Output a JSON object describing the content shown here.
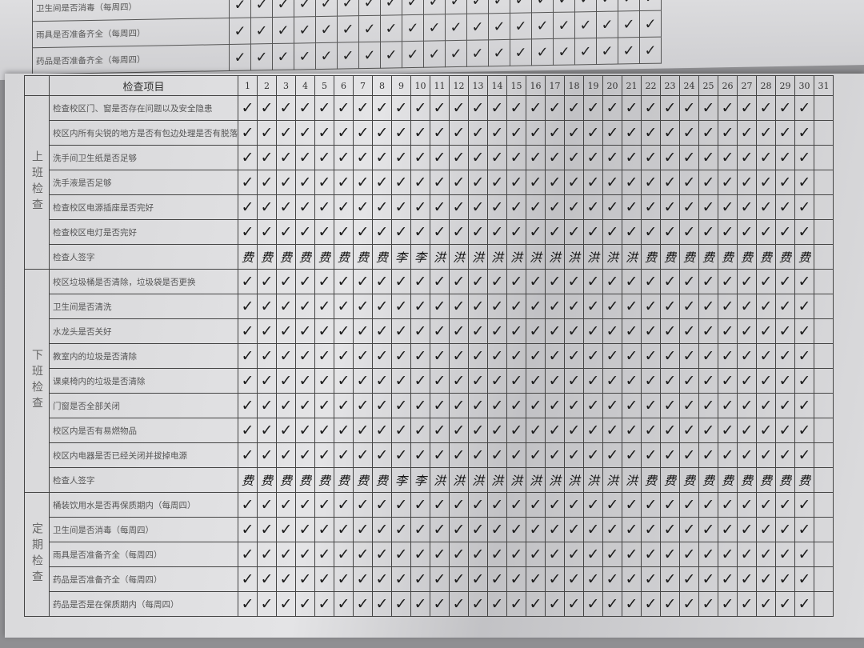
{
  "under_page": {
    "section": "定期检查",
    "rows": [
      {
        "label": "卫生间是否消毒（每周四）",
        "marks": [
          "✓",
          "✓",
          "✓",
          "✓",
          "✓",
          "✓",
          "✓",
          "✓",
          "✓",
          "✓",
          "✓",
          "✓",
          "✓",
          "✓",
          "✓",
          "✓",
          "✓",
          "✓",
          "✓",
          "✓"
        ]
      },
      {
        "label": "雨具是否准备齐全（每周四）",
        "marks": [
          "✓",
          "✓",
          "✓",
          "✓",
          "✓",
          "✓",
          "✓",
          "✓",
          "✓",
          "✓",
          "✓",
          "✓",
          "✓",
          "✓",
          "✓",
          "✓",
          "✓",
          "✓",
          "✓",
          "✓"
        ]
      },
      {
        "label": "药品是否准备齐全（每周四）",
        "marks": [
          "✓",
          "✓",
          "✓",
          "✓",
          "✓",
          "✓",
          "✓",
          "✓",
          "✓",
          "✓",
          "✓",
          "✓",
          "✓",
          "✓",
          "✓",
          "✓",
          "✓",
          "✓",
          "✓",
          "✓"
        ]
      }
    ]
  },
  "table": {
    "header_label": "检查项目",
    "days": [
      "1",
      "2",
      "3",
      "4",
      "5",
      "6",
      "7",
      "8",
      "9",
      "10",
      "11",
      "12",
      "13",
      "14",
      "15",
      "16",
      "17",
      "18",
      "19",
      "20",
      "21",
      "22",
      "23",
      "24",
      "25",
      "26",
      "27",
      "28",
      "29",
      "30",
      "31"
    ],
    "sections": [
      {
        "name": "上班检查",
        "rows": [
          {
            "label": "检查校区门、窗是否存在问题以及安全隐患",
            "type": "check"
          },
          {
            "label": "校区内所有尖锐的地方是否有包边处理是否有脱落",
            "type": "check"
          },
          {
            "label": "洗手间卫生纸是否足够",
            "type": "check"
          },
          {
            "label": "洗手液是否足够",
            "type": "check"
          },
          {
            "label": "检查校区电源插座是否完好",
            "type": "check"
          },
          {
            "label": "检查校区电灯是否完好",
            "type": "check"
          },
          {
            "label": "检查人签字",
            "type": "sign"
          }
        ]
      },
      {
        "name": "下班检查",
        "rows": [
          {
            "label": "校区垃圾桶是否清除，垃圾袋是否更换",
            "type": "check"
          },
          {
            "label": "卫生间是否清洗",
            "type": "check"
          },
          {
            "label": "水龙头是否关好",
            "type": "check"
          },
          {
            "label": "教室内的垃圾是否清除",
            "type": "check"
          },
          {
            "label": "课桌椅内的垃圾是否清除",
            "type": "check"
          },
          {
            "label": "门窗是否全部关闭",
            "type": "check"
          },
          {
            "label": "校区内是否有易燃物品",
            "type": "check"
          },
          {
            "label": "校区内电器是否已经关闭并拔掉电源",
            "type": "check"
          },
          {
            "label": "检查人签字",
            "type": "sign"
          }
        ]
      },
      {
        "name": "定期检查",
        "rows": [
          {
            "label": "桶装饮用水是否再保质期内（每周四）",
            "type": "check"
          },
          {
            "label": "卫生间是否消毒（每周四）",
            "type": "check"
          },
          {
            "label": "雨具是否准备齐全（每周四）",
            "type": "check"
          },
          {
            "label": "药品是否准备齐全（每周四）",
            "type": "check"
          },
          {
            "label": "药品是否是在保质期内（每周四）",
            "type": "check"
          }
        ]
      }
    ],
    "check_mark": "✓",
    "checked_days": 30,
    "signatures": [
      "费",
      "费",
      "费",
      "费",
      "费",
      "费",
      "费",
      "费",
      "李",
      "李",
      "洪",
      "洪",
      "洪",
      "洪",
      "洪",
      "洪",
      "洪",
      "洪",
      "洪",
      "洪",
      "洪",
      "费",
      "费",
      "费",
      "费",
      "费",
      "费",
      "费",
      "费",
      "费",
      ""
    ]
  }
}
